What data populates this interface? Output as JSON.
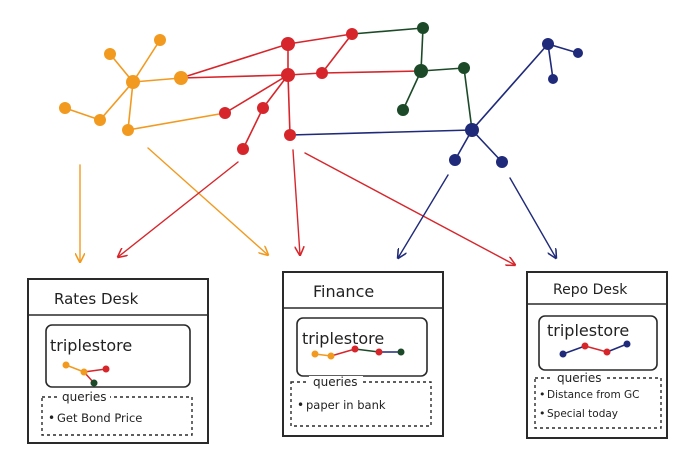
{
  "colors": {
    "orange": "#f29a1f",
    "red": "#d7262b",
    "green": "#1c4a28",
    "blue": "#1f2a7a",
    "ink": "#2a2a2a"
  },
  "desks": [
    {
      "title": "Rates Desk",
      "store_label": "triplestore",
      "queries_label": "queries",
      "queries": [
        "Get Bond Price"
      ]
    },
    {
      "title": "Finance",
      "store_label": "triplestore",
      "queries_label": "queries",
      "queries": [
        "paper in bank"
      ]
    },
    {
      "title": "Repo Desk",
      "store_label": "triplestore",
      "queries_label": "queries",
      "queries": [
        "Distance from GC",
        "Special today"
      ]
    }
  ]
}
